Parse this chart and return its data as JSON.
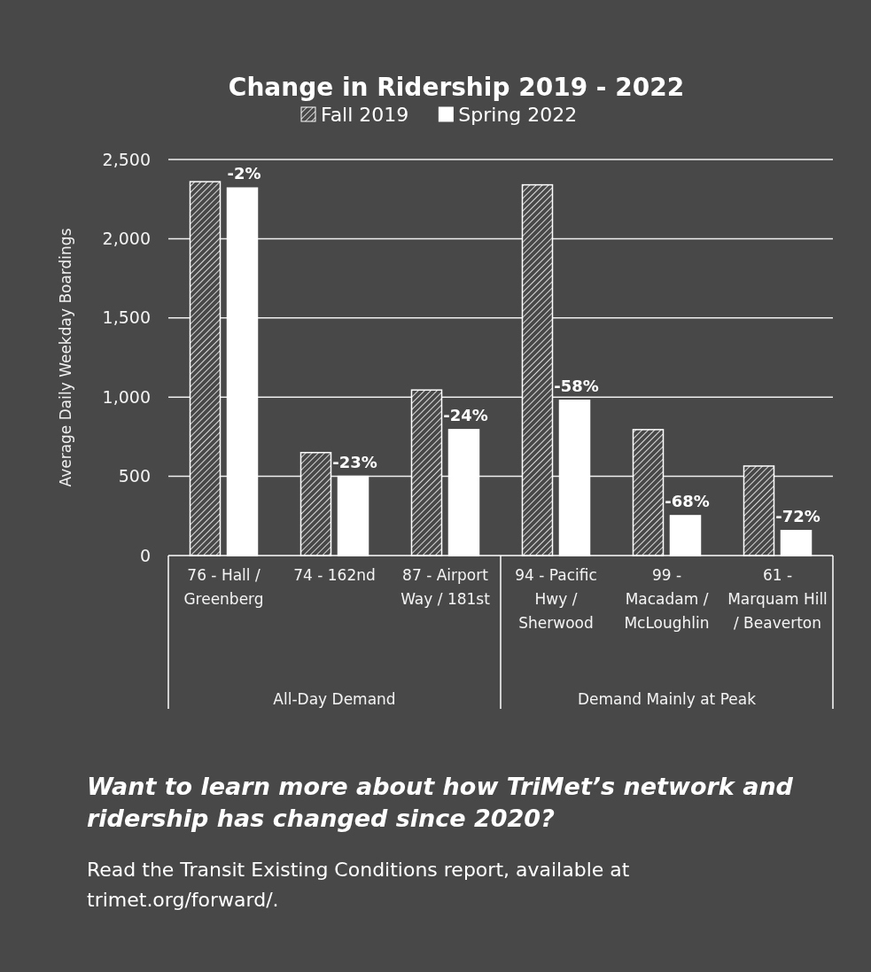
{
  "chart_data": {
    "type": "bar",
    "title": "Change in Ridership 2019 - 2022",
    "ylabel": "Average Daily Weekday Boardings",
    "categories": [
      "76 - Hall / Greenberg",
      "74 - 162nd",
      "87 - Airport Way / 181st",
      "94 - Pacific Hwy / Sherwood",
      "99 - Macadam / McLoughlin",
      "61 - Marquam Hill / Beaverton"
    ],
    "series": [
      {
        "name": "Fall 2019",
        "color": "#ffffff",
        "values": [
          2360,
          650,
          1045,
          2340,
          795,
          565
        ]
      },
      {
        "name": "Spring 2022",
        "color": "#ffffff",
        "values": [
          2320,
          500,
          795,
          980,
          252,
          158
        ]
      }
    ],
    "ylim": [
      0,
      2500
    ],
    "yticks": [
      {
        "value": 0,
        "label": "0"
      },
      {
        "value": 500,
        "label": "500"
      },
      {
        "value": 1000,
        "label": "1,000"
      },
      {
        "value": 1500,
        "label": "1,500"
      },
      {
        "value": 2000,
        "label": "2,000"
      },
      {
        "value": 2500,
        "label": "2,500"
      }
    ],
    "grid": "y",
    "legend": "top",
    "annotations": [
      "All-Day Demand",
      "Demand Mainly at Peak",
      "Want to learn more about how TriMet’s network and ridership has changed since 2020?",
      "Read the Transit Existing Conditions report, available at trimet.org/forward/.",
      {
        "text": "-2%",
        "x": "76 - Hall / Greenberg",
        "y": 2320
      },
      {
        "text": "-23%",
        "x": "74 - 162nd",
        "y": 500
      },
      {
        "text": "-24%",
        "x": "87 - Airport Way / 181st",
        "y": 795
      },
      {
        "text": "-58%",
        "x": "94 - Pacific Hwy / Sherwood",
        "y": 980
      },
      {
        "text": "-68%",
        "x": "99 - Macadam / McLoughlin",
        "y": 252
      },
      {
        "text": "-72%",
        "x": "61 - Marquam Hill / Beaverton",
        "y": 158
      }
    ]
  }
}
